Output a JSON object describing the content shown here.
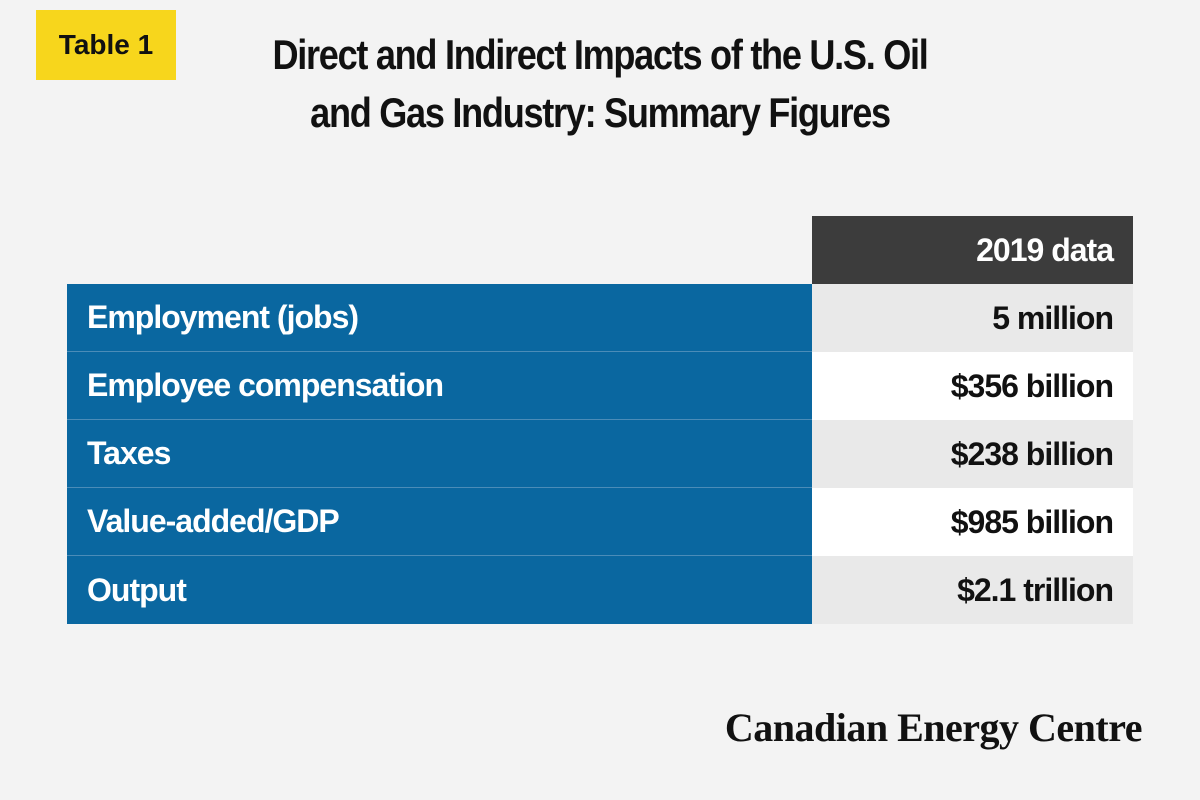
{
  "badge": "Table 1",
  "title_line1": "Direct and Indirect Impacts of the U.S. Oil",
  "title_line2": "and Gas Industry: Summary Figures",
  "table": {
    "column_header": "2019 data",
    "rows": [
      {
        "label": "Employment (jobs)",
        "value": "5 million"
      },
      {
        "label": "Employee compensation",
        "value": "$356 billion"
      },
      {
        "label": "Taxes",
        "value": "$238 billion"
      },
      {
        "label": "Value-added/GDP",
        "value": "$985 billion"
      },
      {
        "label": "Output",
        "value": "$2.1 trillion"
      }
    ]
  },
  "brand": "Canadian Energy Centre",
  "colors": {
    "badge": "#f7d61c",
    "label_cells": "#0a67a0",
    "header_cell": "#3c3c3c",
    "background": "#f3f3f3"
  }
}
